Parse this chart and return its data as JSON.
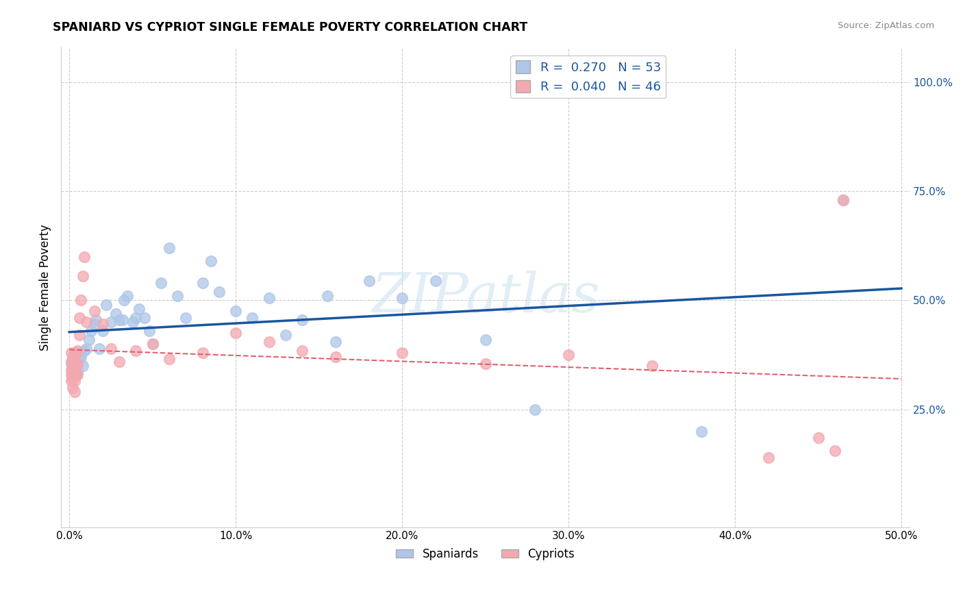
{
  "title": "SPANIARD VS CYPRIOT SINGLE FEMALE POVERTY CORRELATION CHART",
  "source": "Source: ZipAtlas.com",
  "ylabel": "Single Female Poverty",
  "watermark": "ZIPatlas",
  "spaniards_R": 0.27,
  "spaniards_N": 53,
  "cypriots_R": 0.04,
  "cypriots_N": 46,
  "spaniard_color": "#aec6e8",
  "cypriot_color": "#f4a8b0",
  "spaniard_line_color": "#1a56a0",
  "cypriot_line_color": "#e06070",
  "background_color": "#ffffff",
  "grid_color": "#cccccc",
  "xlim": [
    -0.005,
    0.505
  ],
  "ylim": [
    -0.02,
    1.08
  ],
  "xtick_labels": [
    "0.0%",
    "10.0%",
    "20.0%",
    "30.0%",
    "40.0%",
    "50.0%"
  ],
  "xtick_vals": [
    0.0,
    0.1,
    0.2,
    0.3,
    0.4,
    0.5
  ],
  "ytick_labels": [
    "25.0%",
    "50.0%",
    "75.0%",
    "100.0%"
  ],
  "ytick_vals": [
    0.25,
    0.5,
    0.75,
    1.0
  ],
  "spaniards_x": [
    0.001,
    0.002,
    0.002,
    0.003,
    0.003,
    0.004,
    0.005,
    0.005,
    0.006,
    0.007,
    0.008,
    0.009,
    0.01,
    0.012,
    0.013,
    0.015,
    0.016,
    0.018,
    0.02,
    0.022,
    0.025,
    0.028,
    0.03,
    0.032,
    0.033,
    0.035,
    0.038,
    0.04,
    0.042,
    0.045,
    0.048,
    0.05,
    0.055,
    0.06,
    0.065,
    0.07,
    0.08,
    0.085,
    0.09,
    0.1,
    0.11,
    0.12,
    0.13,
    0.14,
    0.155,
    0.16,
    0.18,
    0.2,
    0.22,
    0.25,
    0.28,
    0.38,
    0.465
  ],
  "spaniards_y": [
    0.355,
    0.33,
    0.37,
    0.345,
    0.36,
    0.38,
    0.35,
    0.335,
    0.365,
    0.37,
    0.35,
    0.385,
    0.39,
    0.41,
    0.43,
    0.445,
    0.455,
    0.39,
    0.43,
    0.49,
    0.45,
    0.47,
    0.455,
    0.455,
    0.5,
    0.51,
    0.45,
    0.46,
    0.48,
    0.46,
    0.43,
    0.4,
    0.54,
    0.62,
    0.51,
    0.46,
    0.54,
    0.59,
    0.52,
    0.475,
    0.46,
    0.505,
    0.42,
    0.455,
    0.51,
    0.405,
    0.545,
    0.505,
    0.545,
    0.41,
    0.25,
    0.2,
    0.73
  ],
  "cypriots_x": [
    0.001,
    0.001,
    0.001,
    0.001,
    0.001,
    0.002,
    0.002,
    0.002,
    0.002,
    0.003,
    0.003,
    0.003,
    0.003,
    0.003,
    0.004,
    0.004,
    0.004,
    0.005,
    0.005,
    0.005,
    0.006,
    0.006,
    0.007,
    0.008,
    0.009,
    0.01,
    0.015,
    0.02,
    0.025,
    0.03,
    0.04,
    0.05,
    0.06,
    0.08,
    0.1,
    0.12,
    0.14,
    0.16,
    0.2,
    0.25,
    0.3,
    0.35,
    0.42,
    0.45,
    0.46,
    0.465
  ],
  "cypriots_y": [
    0.315,
    0.33,
    0.34,
    0.36,
    0.38,
    0.3,
    0.32,
    0.34,
    0.36,
    0.29,
    0.315,
    0.335,
    0.36,
    0.38,
    0.33,
    0.345,
    0.38,
    0.33,
    0.355,
    0.385,
    0.42,
    0.46,
    0.5,
    0.555,
    0.6,
    0.45,
    0.475,
    0.445,
    0.39,
    0.36,
    0.385,
    0.4,
    0.365,
    0.38,
    0.425,
    0.405,
    0.385,
    0.37,
    0.38,
    0.355,
    0.375,
    0.35,
    0.14,
    0.185,
    0.155,
    0.73
  ]
}
